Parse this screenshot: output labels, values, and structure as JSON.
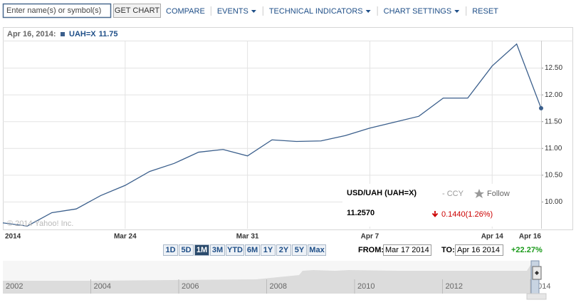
{
  "toolbar": {
    "search_placeholder": "Enter name(s) or symbol(s)",
    "button": "GET CHART",
    "menu": [
      "COMPARE",
      "EVENTS",
      "TECHNICAL INDICATORS",
      "CHART SETTINGS",
      "RESET"
    ],
    "menu_dropdowns": [
      false,
      true,
      true,
      true,
      false
    ]
  },
  "chart_data": {
    "type": "line",
    "header_date": "Apr 16, 2014:",
    "legend_value": 11.75,
    "watermark": "© 2014 Yahoo! Inc.",
    "categories": [
      "2014",
      null,
      null,
      null,
      null,
      "Mar 24",
      null,
      null,
      null,
      null,
      "Mar 31",
      null,
      null,
      null,
      null,
      "Apr 7",
      null,
      null,
      null,
      null,
      "Apr 14",
      null,
      "Apr 16"
    ],
    "series": [
      {
        "name": "UAH=X",
        "color": "#3b5f8c",
        "values": [
          9.61,
          9.55,
          9.8,
          9.87,
          10.12,
          10.31,
          10.57,
          10.72,
          10.93,
          10.98,
          10.86,
          11.16,
          11.13,
          11.14,
          11.24,
          11.38,
          11.49,
          11.6,
          11.94,
          11.94,
          12.54,
          12.95,
          11.75
        ]
      }
    ],
    "ylim": [
      9.5,
      13.0
    ],
    "yticks": [
      {
        "value": 10,
        "label": "10.00"
      },
      {
        "value": 10.5,
        "label": "10.50"
      },
      {
        "value": 11,
        "label": "11.00"
      },
      {
        "value": 11.5,
        "label": "11.50"
      },
      {
        "value": 12,
        "label": "12.00"
      },
      {
        "value": 12.5,
        "label": "12.50"
      }
    ],
    "grid": true
  },
  "quote": {
    "name": "USD/UAH (UAH=X)",
    "exchange": "- CCY",
    "follow": "Follow",
    "price": "11.2570",
    "change": "0.1440(1.26%)"
  },
  "range": {
    "buttons": [
      "1D",
      "5D",
      "1M",
      "3M",
      "YTD",
      "6M",
      "1Y",
      "2Y",
      "5Y",
      "Max"
    ],
    "active": "1M",
    "from_label": "FROM:",
    "from": "Mar 17 2014",
    "to_label": "TO:",
    "to": "Apr 16 2014",
    "period_change": "+22.27%"
  },
  "navigator": {
    "years": [
      "2002",
      "2004",
      "2006",
      "2008",
      "2010",
      "2012",
      "2014"
    ]
  }
}
